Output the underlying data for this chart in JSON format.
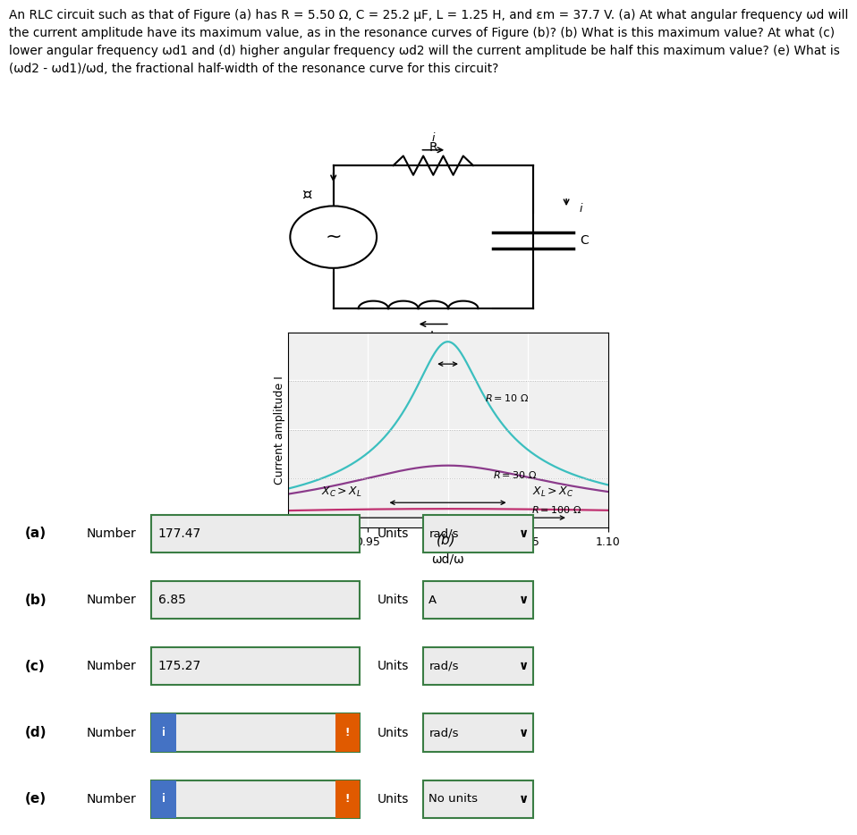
{
  "problem_text": "An RLC circuit such as that of Figure (a) has R = 5.50 Ω, C = 25.2 μF, L = 1.25 H, and εm = 37.7 V. (a) At what angular frequency ωd will\nthe current amplitude have its maximum value, as in the resonance curves of Figure (b)? (b) What is this maximum value? At what (c)\nlower angular frequency ωd1 and (d) higher angular frequency ωd2 will the current amplitude be half this maximum value? (e) What is\n(ωd2 - ωd1)/ωd, the fractional half-width of the resonance curve for this circuit?",
  "answers": [
    {
      "label": "(a)",
      "number": "177.47",
      "units": "rad/s",
      "has_info": false
    },
    {
      "label": "(b)",
      "number": "6.85",
      "units": "A",
      "has_info": false
    },
    {
      "label": "(c)",
      "number": "175.27",
      "units": "rad/s",
      "has_info": false
    },
    {
      "label": "(d)",
      "number": "",
      "units": "rad/s",
      "has_info": true
    },
    {
      "label": "(e)",
      "number": "",
      "units": "No units",
      "has_info": true
    }
  ],
  "plot_xlim": [
    0.9,
    1.1
  ],
  "plot_xticks": [
    0.9,
    0.95,
    1.0,
    1.05,
    1.1
  ],
  "plot_xlabel": "ωd/ω",
  "plot_ylabel": "Current amplitude I",
  "curves": [
    {
      "R": 10,
      "color": "#3bbfbf"
    },
    {
      "R": 30,
      "color": "#8b3b8b"
    },
    {
      "R": 100,
      "color": "#c03070"
    }
  ],
  "em": 37.7,
  "L": 1.25,
  "C": 2.52e-05,
  "background_color": "#ffffff",
  "box_border_color": "#3a7d44",
  "info_color": "#4472c4",
  "error_color": "#e05a00"
}
